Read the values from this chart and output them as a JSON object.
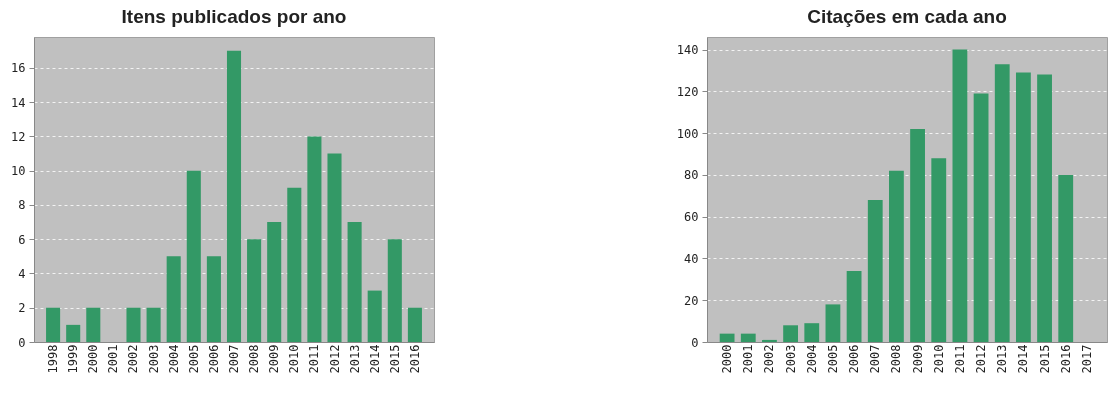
{
  "chart_data": [
    {
      "type": "bar",
      "title": "Itens publicados por ano",
      "categories": [
        "1998",
        "1999",
        "2000",
        "2001",
        "2002",
        "2003",
        "2004",
        "2005",
        "2006",
        "2007",
        "2008",
        "2009",
        "2010",
        "2011",
        "2012",
        "2013",
        "2014",
        "2015",
        "2016"
      ],
      "values": [
        2,
        1,
        2,
        0,
        2,
        2,
        5,
        10,
        5,
        17,
        6,
        7,
        9,
        12,
        11,
        7,
        3,
        6,
        2
      ],
      "color": "#339966",
      "ylim": [
        0,
        17.8
      ],
      "yticks": [
        0,
        2,
        4,
        6,
        8,
        10,
        12,
        14,
        16
      ],
      "grid": "y"
    },
    {
      "type": "bar",
      "title": "Citações em cada ano",
      "categories": [
        "2000",
        "2001",
        "2002",
        "2003",
        "2004",
        "2005",
        "2006",
        "2007",
        "2008",
        "2009",
        "2010",
        "2011",
        "2012",
        "2013",
        "2014",
        "2015",
        "2016",
        "2017"
      ],
      "values": [
        4,
        4,
        1,
        8,
        9,
        18,
        34,
        68,
        82,
        102,
        88,
        140,
        119,
        133,
        129,
        128,
        80,
        0
      ],
      "color": "#339966",
      "ylim": [
        0,
        146
      ],
      "yticks": [
        0,
        20,
        40,
        60,
        80,
        100,
        120,
        140
      ],
      "grid": "y"
    }
  ]
}
